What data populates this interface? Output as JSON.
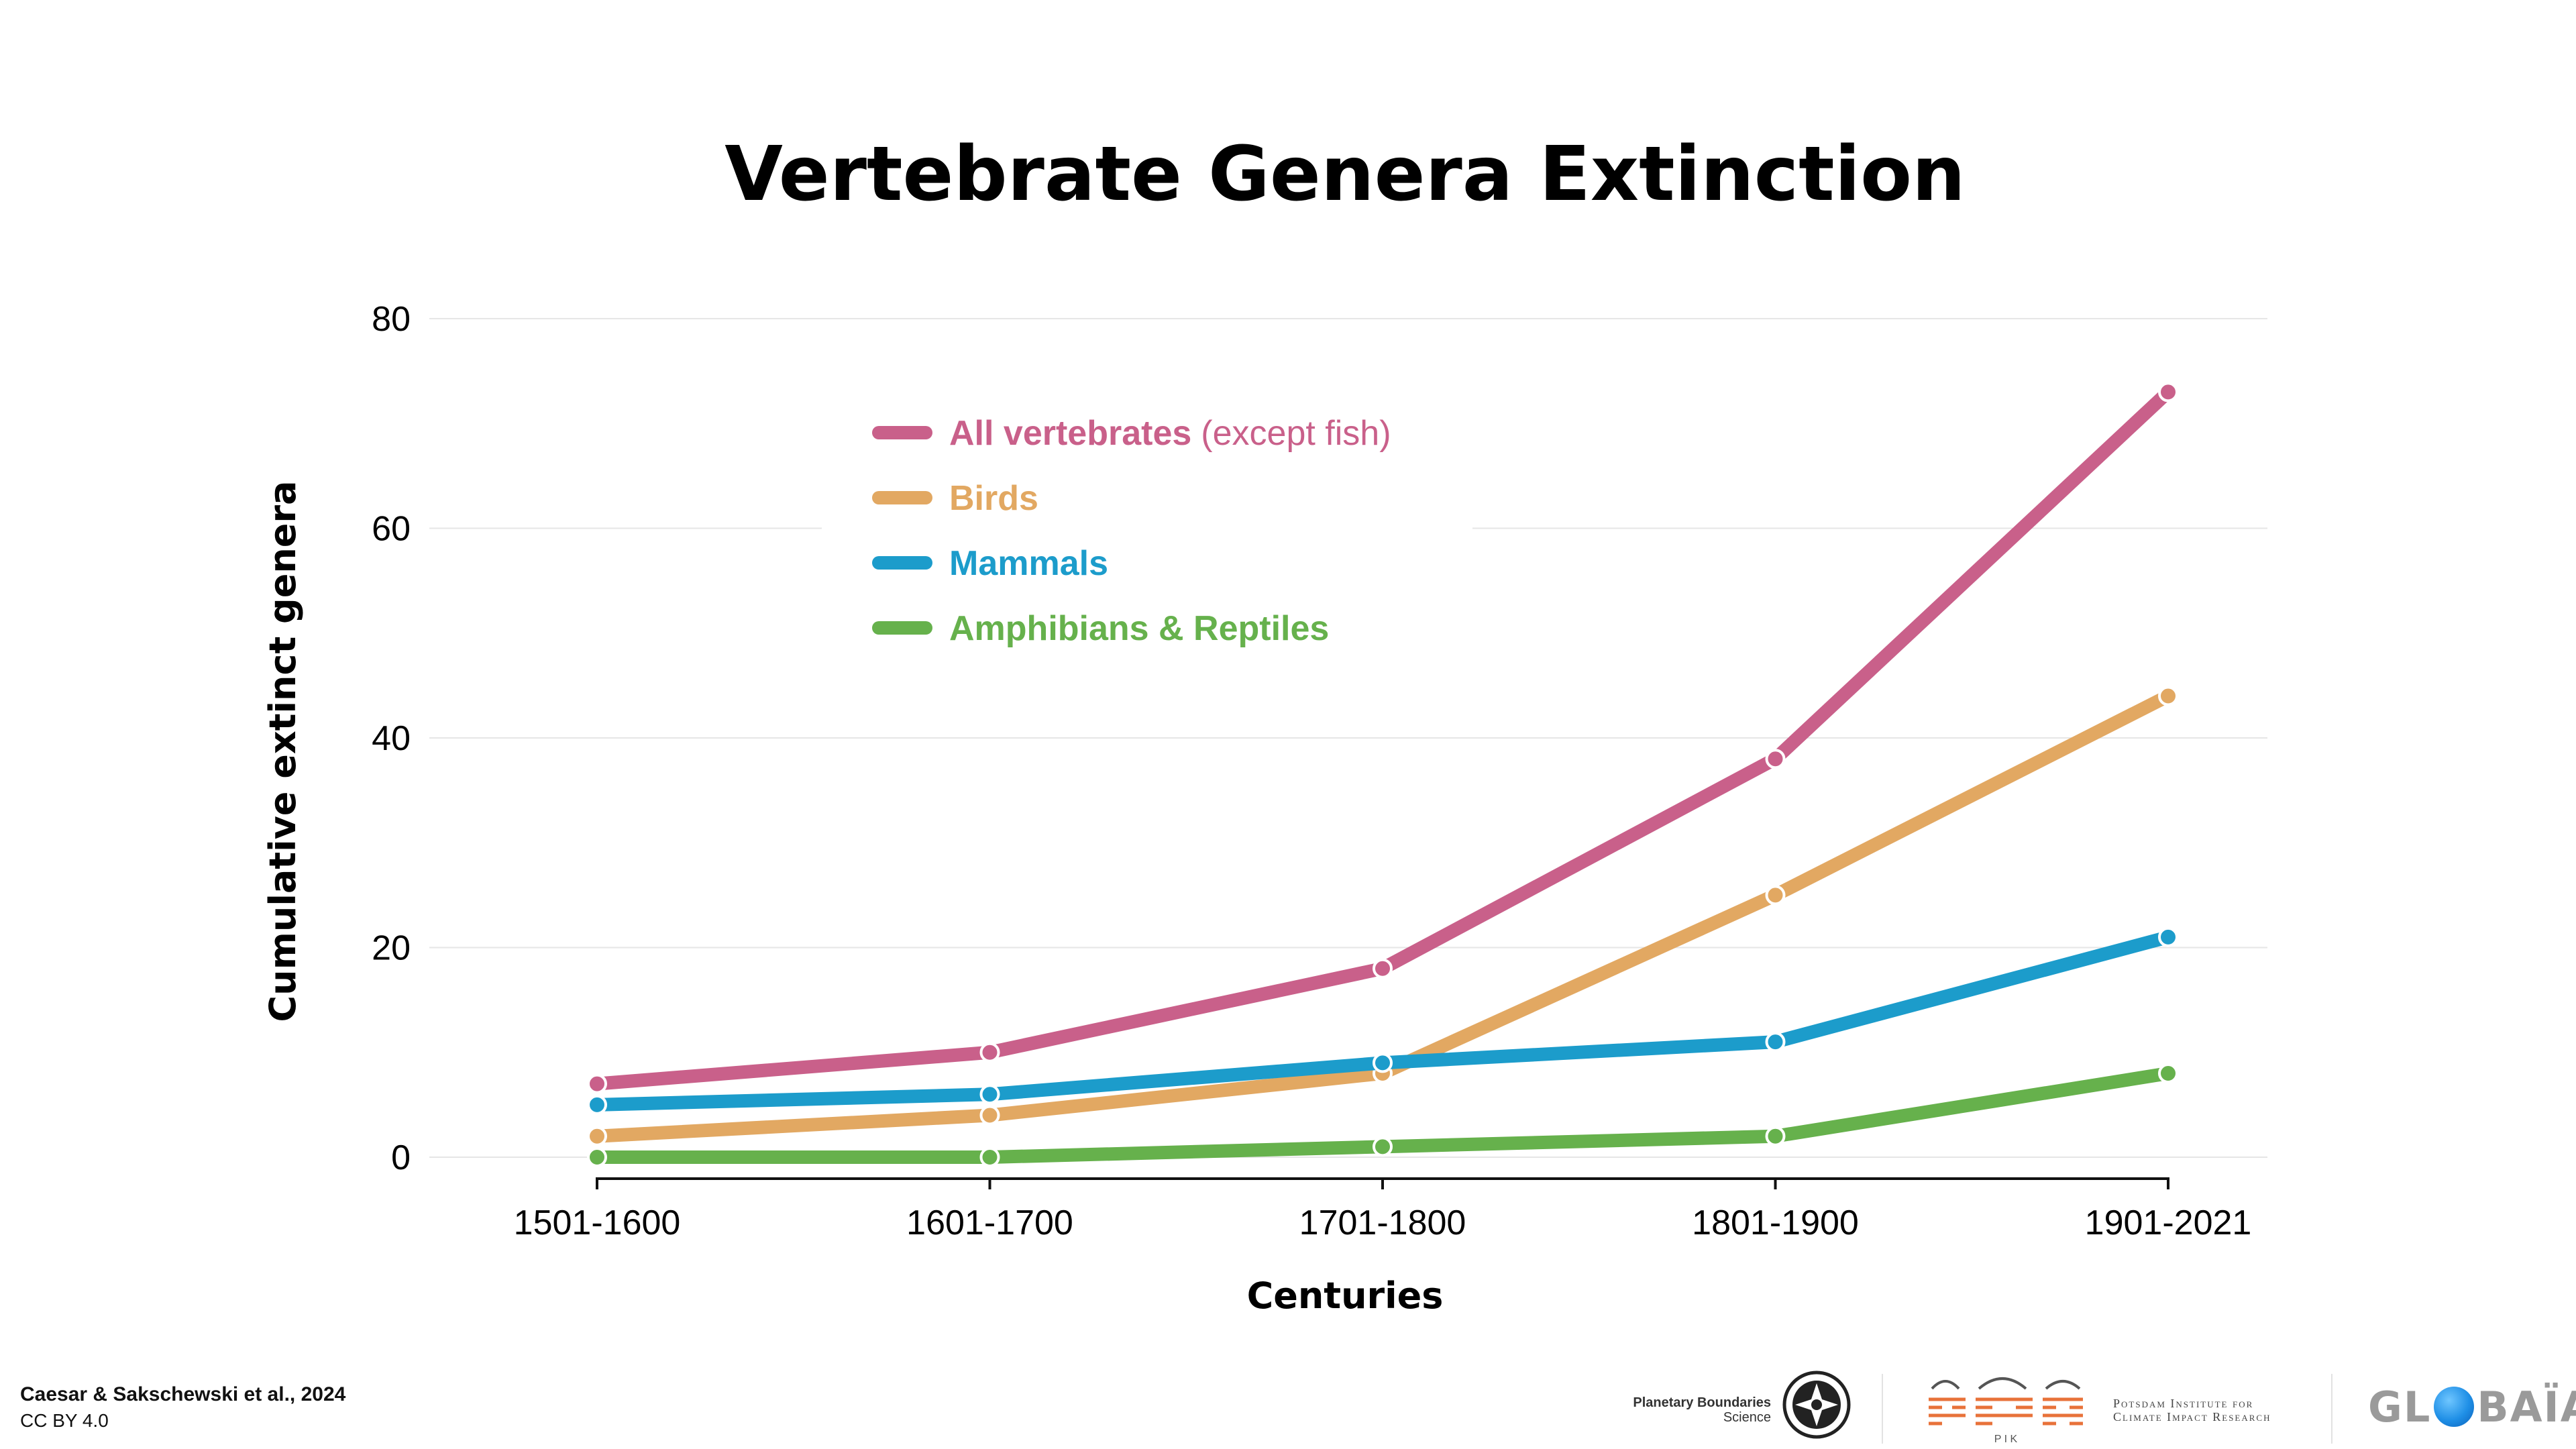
{
  "chart_data": {
    "type": "line",
    "title": "Vertebrate Genera Extinction",
    "xlabel": "Centuries",
    "ylabel": "Cumulative extinct genera",
    "categories": [
      "1501-1600",
      "1601-1700",
      "1701-1800",
      "1801-1900",
      "1901-2021"
    ],
    "ylim": [
      0,
      80
    ],
    "yticks": [
      0,
      20,
      40,
      60,
      80
    ],
    "grid": true,
    "legend_placement": "top-left",
    "series": [
      {
        "name": "All vertebrates",
        "note": "(except fish)",
        "color": "#c9608a",
        "values": [
          7,
          10,
          18,
          38,
          73
        ]
      },
      {
        "name": "Birds",
        "note": "",
        "color": "#e2a862",
        "values": [
          2,
          4,
          8,
          25,
          44
        ]
      },
      {
        "name": "Mammals",
        "note": "",
        "color": "#1c9ccb",
        "values": [
          5,
          6,
          9,
          11,
          21
        ]
      },
      {
        "name": "Amphibians & Reptiles",
        "note": "",
        "color": "#66b14c",
        "values": [
          0,
          0,
          1,
          2,
          8
        ]
      }
    ]
  },
  "footer": {
    "source": "Caesar & Sakschewski et al., 2024",
    "license": "CC BY 4.0"
  },
  "logos": {
    "pbs_name": "Planetary Boundaries",
    "pbs_sub": "Science",
    "pik_line1": "Potsdam Institute for",
    "pik_line2": "Climate Impact Research",
    "pik_abbr": "P I K",
    "globaia_left": "GL",
    "globaia_right": "BAÏA"
  }
}
